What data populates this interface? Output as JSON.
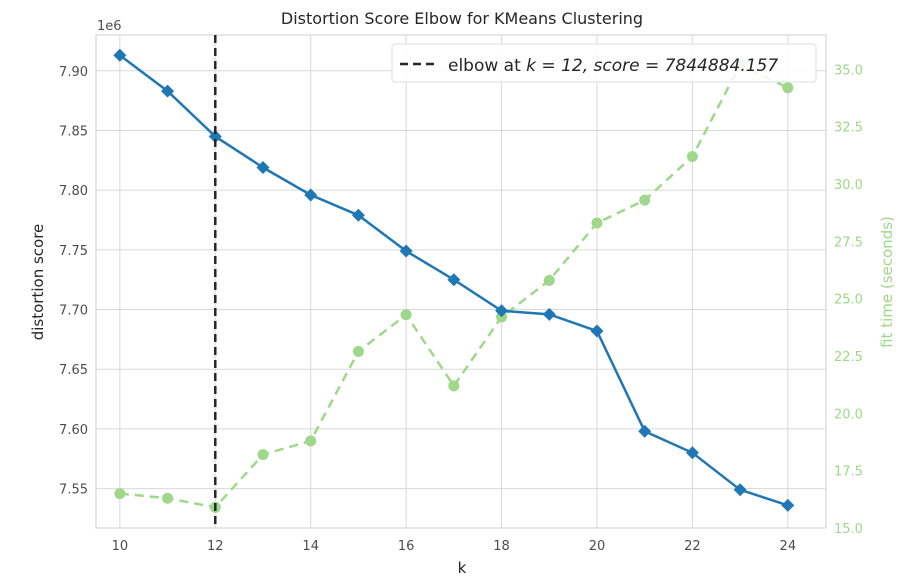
{
  "chart_data": {
    "type": "line",
    "title": "Distortion Score Elbow for KMeans Clustering",
    "xlabel": "k",
    "ylabel": "distortion score",
    "y2label": "fit time (seconds)",
    "y_offset_label": "1e6",
    "grid": true,
    "legend_position": "top-right",
    "xlim": [
      9.5,
      24.8
    ],
    "ylim": [
      7.517,
      7.93
    ],
    "y2lim": [
      15.0,
      36.5
    ],
    "x_ticks": [
      "10",
      "12",
      "14",
      "16",
      "18",
      "20",
      "22",
      "24"
    ],
    "y_ticks": [
      "7.55",
      "7.60",
      "7.65",
      "7.70",
      "7.75",
      "7.80",
      "7.85",
      "7.90"
    ],
    "y2_ticks": [
      "15.0",
      "17.5",
      "20.0",
      "22.5",
      "25.0",
      "27.5",
      "30.0",
      "32.5",
      "35.0"
    ],
    "x": [
      10,
      11,
      12,
      13,
      14,
      15,
      16,
      17,
      18,
      19,
      20,
      21,
      22,
      23,
      24
    ],
    "series": [
      {
        "axis": "left",
        "color": "#1f77b4",
        "values": [
          7.913,
          7.883,
          7.845,
          7.819,
          7.796,
          7.779,
          7.749,
          7.725,
          7.699,
          7.696,
          7.682,
          7.598,
          7.58,
          7.549,
          7.536
        ]
      },
      {
        "axis": "right",
        "color": "#9fd88a",
        "values": [
          16.5,
          16.3,
          15.9,
          18.2,
          18.8,
          22.7,
          24.3,
          21.2,
          24.2,
          25.8,
          28.3,
          29.3,
          31.2,
          35.2,
          34.2
        ]
      }
    ],
    "elbow": {
      "k": 12,
      "legend_prefix": "elbow at ",
      "legend_text": "k = 12, score = 7844884.157"
    },
    "colors": {
      "distortion_line": "#1f77b4",
      "fit_time_line": "#9fd88a",
      "elbow_line": "#262626",
      "grid": "#d9d9d9",
      "right_axis_text": "#9fd88a"
    }
  }
}
